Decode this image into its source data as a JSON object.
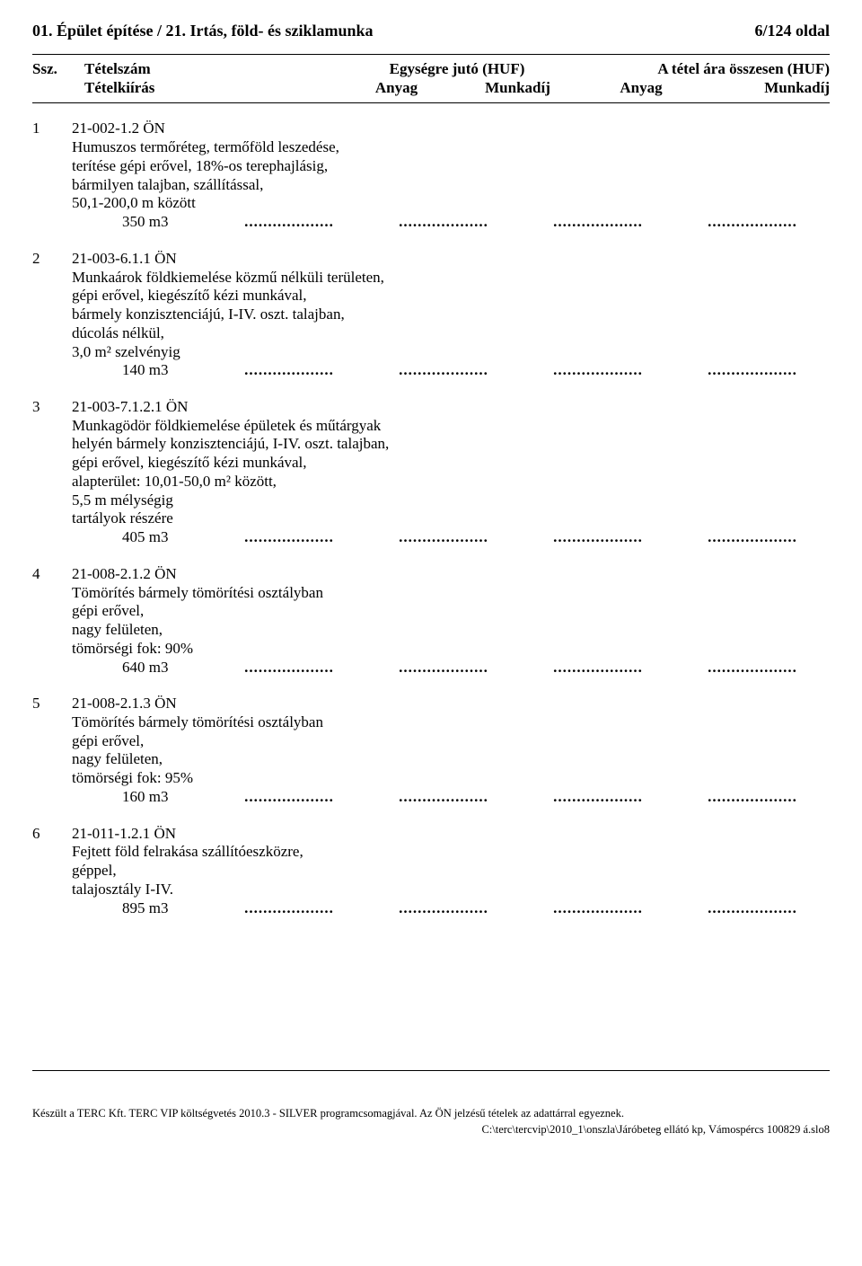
{
  "header": {
    "title_left": "01. Épület építése  /  21. Irtás, föld- és sziklamunka",
    "title_right": "6/124 oldal"
  },
  "columns": {
    "ssz": "Ssz.",
    "tetelszam": "Tételszám",
    "egysegre": "Egységre jutó (HUF)",
    "osszesen": "A tétel ára összesen (HUF)",
    "tetelkiiras": "Tételkiírás",
    "anyag": "Anyag",
    "munkadij": "Munkadíj"
  },
  "items": [
    {
      "num": "1",
      "code": "21-002-1.2 ÖN",
      "lines": [
        "Humuszos termőréteg, termőföld leszedése,",
        "terítése gépi erővel, 18%-os terephajlásig,",
        "bármilyen talajban, szállítással,",
        "50,1-200,0 m között"
      ],
      "qty": "350  m3"
    },
    {
      "num": "2",
      "code": "21-003-6.1.1 ÖN",
      "lines": [
        "Munkaárok földkiemelése közmű nélküli területen,",
        "gépi erővel, kiegészítő kézi munkával,",
        "bármely konzisztenciájú, I-IV. oszt. talajban,",
        "dúcolás nélkül,",
        "3,0 m² szelvényig"
      ],
      "qty": "140  m3"
    },
    {
      "num": "3",
      "code": "21-003-7.1.2.1 ÖN",
      "lines": [
        "Munkagödör földkiemelése épületek és műtárgyak",
        "helyén bármely konzisztenciájú, I-IV. oszt. talajban,",
        "gépi erővel, kiegészítő kézi munkával,",
        "alapterület: 10,01-50,0 m² között,",
        "5,5 m mélységig",
        "tartályok részére"
      ],
      "qty": "405  m3"
    },
    {
      "num": "4",
      "code": "21-008-2.1.2 ÖN",
      "lines": [
        "Tömörítés bármely tömörítési osztályban",
        "gépi erővel,",
        "nagy felületen,",
        "tömörségi fok: 90%"
      ],
      "qty": "640  m3"
    },
    {
      "num": "5",
      "code": "21-008-2.1.3 ÖN",
      "lines": [
        "Tömörítés bármely tömörítési osztályban",
        "gépi erővel,",
        "nagy felületen,",
        "tömörségi fok: 95%"
      ],
      "qty": "160  m3"
    },
    {
      "num": "6",
      "code": "21-011-1.2.1 ÖN",
      "lines": [
        "Fejtett föld felrakása szállítóeszközre,",
        "géppel,",
        "talajosztály I-IV."
      ],
      "qty": "895  m3"
    }
  ],
  "dots": "...................",
  "footer": {
    "line1": "Készült a TERC Kft. TERC VIP költségvetés 2010.3 - SILVER  programcsomagjával. Az ÖN jelzésű tételek az adattárral egyeznek.",
    "line2": "C:\\terc\\tercvip\\2010_1\\onszla\\Járóbeteg ellátó kp, Vámospércs 100829 á.slo8"
  }
}
